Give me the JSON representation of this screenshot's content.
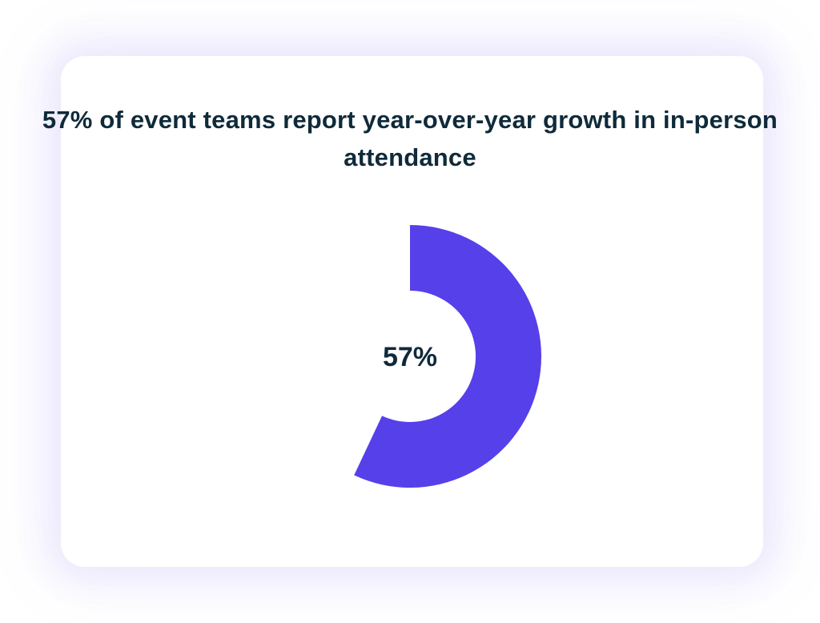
{
  "chart_data": {
    "type": "pie",
    "variant": "donut",
    "title": "57% of event teams report year-over-year growth in in-person attendance",
    "categories": [
      "Report year-over-year growth"
    ],
    "values": [
      57
    ],
    "unit": "%",
    "total": 100,
    "center_label": "57%",
    "start_angle": "top, clockwise",
    "colors": {
      "slice": "#5640ea",
      "remainder": "#ffffff",
      "text": "#0f2a3a"
    }
  }
}
